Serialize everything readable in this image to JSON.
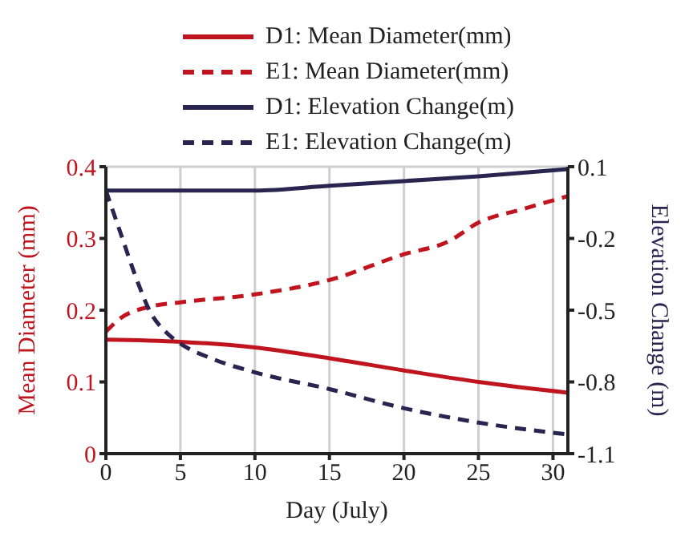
{
  "chart_data": {
    "type": "line",
    "xlabel": "Day (July)",
    "ylabel": "Mean Diameter (mm)",
    "y2label": "Elevation Change (m)",
    "xlim": [
      0,
      31
    ],
    "xticks": [
      0,
      5,
      10,
      15,
      20,
      25,
      30
    ],
    "ylim": [
      0,
      0.4
    ],
    "yticks": [
      0,
      0.1,
      0.2,
      0.3,
      0.4
    ],
    "y2lim": [
      -1.1,
      0.1
    ],
    "y2ticks": [
      0.1,
      -0.2,
      -0.5,
      -0.8,
      -1.1
    ],
    "grid": true,
    "legend": "top",
    "marker": "none",
    "series": [
      {
        "name": "D1: Mean Diameter(mm)",
        "color": "#c0141e",
        "line_style": "solid",
        "x": [
          0,
          5,
          10,
          15,
          20,
          25,
          31
        ],
        "values": [
          0.159,
          0.156,
          0.148,
          0.133,
          0.116,
          0.1,
          0.085
        ]
      },
      {
        "name": "E1: Mean Diameter(mm)",
        "color": "#c0141e",
        "line_style": "dashed",
        "x": [
          0,
          1,
          3,
          5,
          10,
          15,
          20,
          23,
          25,
          28,
          31
        ],
        "values": [
          0.17,
          0.189,
          0.205,
          0.211,
          0.222,
          0.242,
          0.278,
          0.296,
          0.322,
          0.341,
          0.359
        ]
      },
      {
        "name": "D1: Elevation Change(m)",
        "color": "#2a2550",
        "line_style": "solid",
        "axis": "y2",
        "x": [
          0,
          10,
          15,
          20,
          25,
          31
        ],
        "values": [
          0.0,
          0.0,
          0.02,
          0.04,
          0.06,
          0.09
        ]
      },
      {
        "name": "E1: Elevation Change(m)",
        "color": "#2a2550",
        "line_style": "dashed",
        "axis": "y2",
        "x": [
          0,
          1,
          2,
          3,
          4,
          5,
          7,
          10,
          15,
          20,
          25,
          31
        ],
        "values": [
          0.0,
          -0.18,
          -0.36,
          -0.51,
          -0.59,
          -0.64,
          -0.7,
          -0.76,
          -0.83,
          -0.91,
          -0.97,
          -1.02
        ]
      }
    ]
  }
}
